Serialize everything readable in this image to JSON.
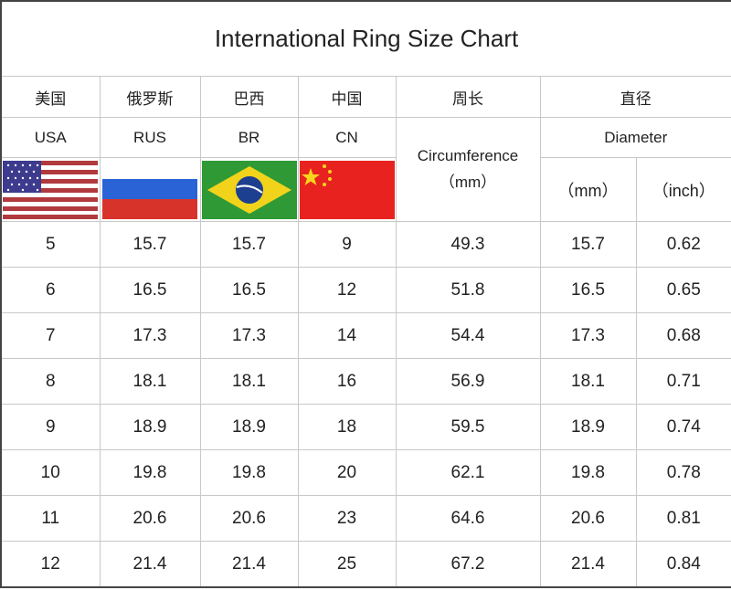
{
  "title": "International Ring Size Chart",
  "header_cn": [
    "美国",
    "俄罗斯",
    "巴西",
    "中国",
    "周长",
    "直径"
  ],
  "header_en": {
    "usa": "USA",
    "rus": "RUS",
    "br": "BR",
    "cn": "CN",
    "circumference": "Circumference",
    "circumference_unit": "（mm）",
    "diameter": "Diameter",
    "diameter_mm": "（mm）",
    "diameter_inch": "（inch）"
  },
  "flags": [
    "usa-flag-icon",
    "russia-flag-icon",
    "brazil-flag-icon",
    "china-flag-icon"
  ],
  "rows": [
    [
      "5",
      "15.7",
      "15.7",
      "9",
      "49.3",
      "15.7",
      "0.62"
    ],
    [
      "6",
      "16.5",
      "16.5",
      "12",
      "51.8",
      "16.5",
      "0.65"
    ],
    [
      "7",
      "17.3",
      "17.3",
      "14",
      "54.4",
      "17.3",
      "0.68"
    ],
    [
      "8",
      "18.1",
      "18.1",
      "16",
      "56.9",
      "18.1",
      "0.71"
    ],
    [
      "9",
      "18.9",
      "18.9",
      "18",
      "59.5",
      "18.9",
      "0.74"
    ],
    [
      "10",
      "19.8",
      "19.8",
      "20",
      "62.1",
      "19.8",
      "0.78"
    ],
    [
      "11",
      "20.6",
      "20.6",
      "23",
      "64.6",
      "20.6",
      "0.81"
    ],
    [
      "12",
      "21.4",
      "21.4",
      "25",
      "67.2",
      "21.4",
      "0.84"
    ]
  ]
}
